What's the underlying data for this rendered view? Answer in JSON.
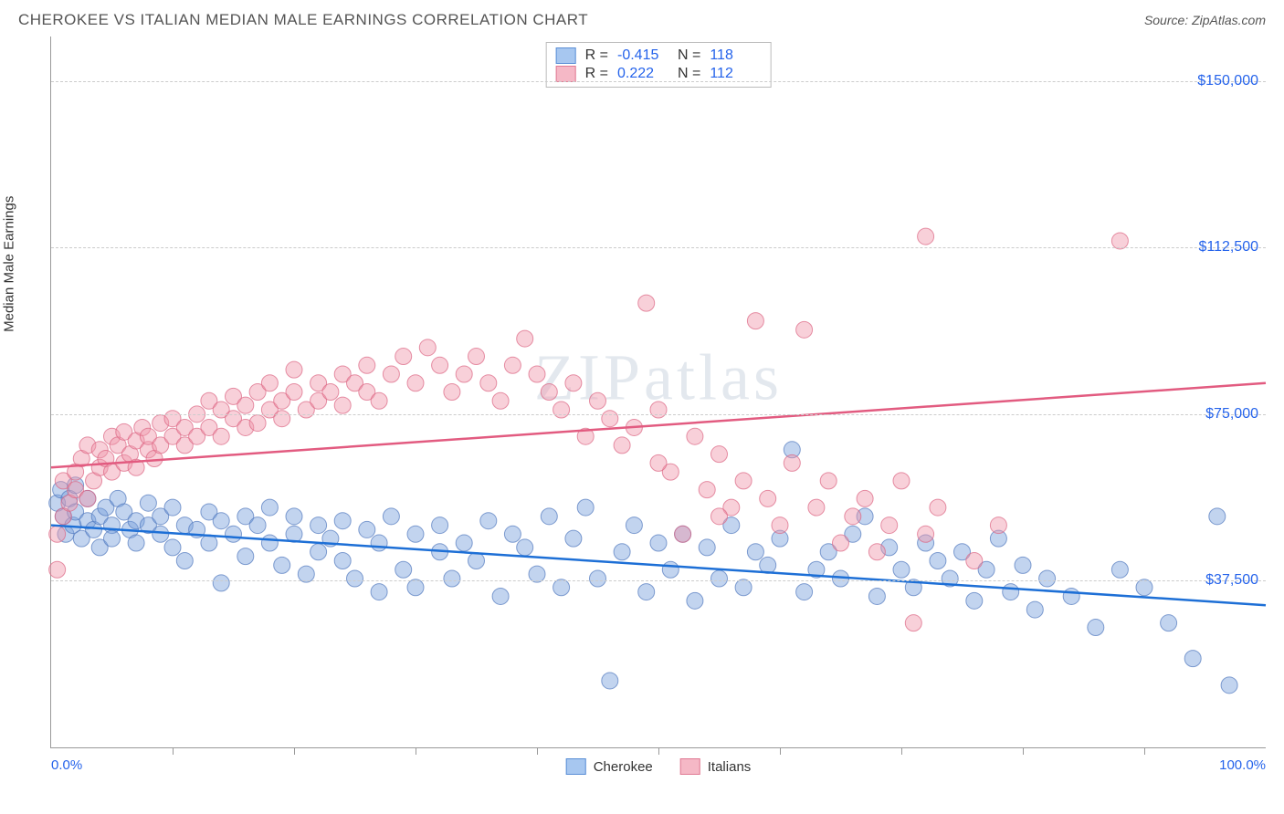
{
  "header": {
    "title": "CHEROKEE VS ITALIAN MEDIAN MALE EARNINGS CORRELATION CHART",
    "source_label": "Source:",
    "source_name": "ZipAtlas.com"
  },
  "chart": {
    "type": "scatter",
    "y_axis_label": "Median Male Earnings",
    "watermark": "ZIPatlas",
    "background_color": "#ffffff",
    "grid_color": "#cccccc",
    "axis_color": "#999999",
    "tick_label_color": "#2563eb",
    "xlim": [
      0,
      100
    ],
    "ylim": [
      0,
      160000
    ],
    "x_ticks_minor": [
      10,
      20,
      30,
      40,
      50,
      60,
      70,
      80,
      90
    ],
    "x_tick_labels": [
      {
        "pos": 0,
        "label": "0.0%",
        "align": "left"
      },
      {
        "pos": 100,
        "label": "100.0%",
        "align": "right"
      }
    ],
    "y_gridlines": [
      37500,
      75000,
      112500,
      150000
    ],
    "y_tick_labels": [
      {
        "pos": 37500,
        "label": "$37,500"
      },
      {
        "pos": 75000,
        "label": "$75,000"
      },
      {
        "pos": 112500,
        "label": "$112,500"
      },
      {
        "pos": 150000,
        "label": "$150,000"
      }
    ],
    "stats_legend": {
      "rows": [
        {
          "r_label": "R =",
          "r": "-0.415",
          "n_label": "N =",
          "n": "118",
          "swatch_fill": "#a7c7f0",
          "swatch_border": "#5b8fd6"
        },
        {
          "r_label": "R =",
          "r": "0.222",
          "n_label": "N =",
          "n": "112",
          "swatch_fill": "#f5b8c6",
          "swatch_border": "#e07a94"
        }
      ]
    },
    "bottom_legend": {
      "items": [
        {
          "label": "Cherokee",
          "swatch_fill": "#a7c7f0",
          "swatch_border": "#5b8fd6"
        },
        {
          "label": "Italians",
          "swatch_fill": "#f5b8c6",
          "swatch_border": "#e07a94"
        }
      ]
    },
    "series": [
      {
        "name": "Cherokee",
        "color_fill": "rgba(120,160,220,0.45)",
        "color_stroke": "rgba(80,120,190,0.7)",
        "trend_color": "#1d6fd6",
        "trend_width": 2.5,
        "trend": {
          "x1": 0,
          "y1": 50000,
          "x2": 100,
          "y2": 32000
        },
        "marker_r": 9,
        "points": [
          [
            0.5,
            55000
          ],
          [
            0.8,
            58000
          ],
          [
            1,
            52000
          ],
          [
            1.2,
            48000
          ],
          [
            1.5,
            56000
          ],
          [
            1.8,
            50000
          ],
          [
            2,
            53000
          ],
          [
            2,
            59000
          ],
          [
            2.5,
            47000
          ],
          [
            3,
            51000
          ],
          [
            3,
            56000
          ],
          [
            3.5,
            49000
          ],
          [
            4,
            52000
          ],
          [
            4,
            45000
          ],
          [
            4.5,
            54000
          ],
          [
            5,
            50000
          ],
          [
            5,
            47000
          ],
          [
            5.5,
            56000
          ],
          [
            6,
            53000
          ],
          [
            6.5,
            49000
          ],
          [
            7,
            51000
          ],
          [
            7,
            46000
          ],
          [
            8,
            55000
          ],
          [
            8,
            50000
          ],
          [
            9,
            48000
          ],
          [
            9,
            52000
          ],
          [
            10,
            54000
          ],
          [
            10,
            45000
          ],
          [
            11,
            50000
          ],
          [
            11,
            42000
          ],
          [
            12,
            49000
          ],
          [
            13,
            53000
          ],
          [
            13,
            46000
          ],
          [
            14,
            51000
          ],
          [
            14,
            37000
          ],
          [
            15,
            48000
          ],
          [
            16,
            52000
          ],
          [
            16,
            43000
          ],
          [
            17,
            50000
          ],
          [
            18,
            46000
          ],
          [
            18,
            54000
          ],
          [
            19,
            41000
          ],
          [
            20,
            48000
          ],
          [
            20,
            52000
          ],
          [
            21,
            39000
          ],
          [
            22,
            50000
          ],
          [
            22,
            44000
          ],
          [
            23,
            47000
          ],
          [
            24,
            42000
          ],
          [
            24,
            51000
          ],
          [
            25,
            38000
          ],
          [
            26,
            49000
          ],
          [
            27,
            35000
          ],
          [
            27,
            46000
          ],
          [
            28,
            52000
          ],
          [
            29,
            40000
          ],
          [
            30,
            48000
          ],
          [
            30,
            36000
          ],
          [
            32,
            44000
          ],
          [
            32,
            50000
          ],
          [
            33,
            38000
          ],
          [
            34,
            46000
          ],
          [
            35,
            42000
          ],
          [
            36,
            51000
          ],
          [
            37,
            34000
          ],
          [
            38,
            48000
          ],
          [
            39,
            45000
          ],
          [
            40,
            39000
          ],
          [
            41,
            52000
          ],
          [
            42,
            36000
          ],
          [
            43,
            47000
          ],
          [
            44,
            54000
          ],
          [
            45,
            38000
          ],
          [
            46,
            15000
          ],
          [
            47,
            44000
          ],
          [
            48,
            50000
          ],
          [
            49,
            35000
          ],
          [
            50,
            46000
          ],
          [
            51,
            40000
          ],
          [
            52,
            48000
          ],
          [
            53,
            33000
          ],
          [
            54,
            45000
          ],
          [
            55,
            38000
          ],
          [
            56,
            50000
          ],
          [
            57,
            36000
          ],
          [
            58,
            44000
          ],
          [
            59,
            41000
          ],
          [
            60,
            47000
          ],
          [
            61,
            67000
          ],
          [
            62,
            35000
          ],
          [
            63,
            40000
          ],
          [
            64,
            44000
          ],
          [
            65,
            38000
          ],
          [
            66,
            48000
          ],
          [
            67,
            52000
          ],
          [
            68,
            34000
          ],
          [
            69,
            45000
          ],
          [
            70,
            40000
          ],
          [
            71,
            36000
          ],
          [
            72,
            46000
          ],
          [
            73,
            42000
          ],
          [
            74,
            38000
          ],
          [
            75,
            44000
          ],
          [
            76,
            33000
          ],
          [
            77,
            40000
          ],
          [
            78,
            47000
          ],
          [
            79,
            35000
          ],
          [
            80,
            41000
          ],
          [
            81,
            31000
          ],
          [
            82,
            38000
          ],
          [
            84,
            34000
          ],
          [
            86,
            27000
          ],
          [
            88,
            40000
          ],
          [
            90,
            36000
          ],
          [
            92,
            28000
          ],
          [
            94,
            20000
          ],
          [
            96,
            52000
          ],
          [
            97,
            14000
          ]
        ]
      },
      {
        "name": "Italians",
        "color_fill": "rgba(240,150,170,0.45)",
        "color_stroke": "rgba(220,100,130,0.7)",
        "trend_color": "#e25b80",
        "trend_width": 2.5,
        "trend": {
          "x1": 0,
          "y1": 63000,
          "x2": 100,
          "y2": 82000
        },
        "marker_r": 9,
        "points": [
          [
            0.5,
            48000
          ],
          [
            0.5,
            40000
          ],
          [
            1,
            52000
          ],
          [
            1,
            60000
          ],
          [
            1.5,
            55000
          ],
          [
            2,
            62000
          ],
          [
            2,
            58000
          ],
          [
            2.5,
            65000
          ],
          [
            3,
            56000
          ],
          [
            3,
            68000
          ],
          [
            3.5,
            60000
          ],
          [
            4,
            63000
          ],
          [
            4,
            67000
          ],
          [
            4.5,
            65000
          ],
          [
            5,
            70000
          ],
          [
            5,
            62000
          ],
          [
            5.5,
            68000
          ],
          [
            6,
            64000
          ],
          [
            6,
            71000
          ],
          [
            6.5,
            66000
          ],
          [
            7,
            69000
          ],
          [
            7,
            63000
          ],
          [
            7.5,
            72000
          ],
          [
            8,
            67000
          ],
          [
            8,
            70000
          ],
          [
            8.5,
            65000
          ],
          [
            9,
            73000
          ],
          [
            9,
            68000
          ],
          [
            10,
            70000
          ],
          [
            10,
            74000
          ],
          [
            11,
            72000
          ],
          [
            11,
            68000
          ],
          [
            12,
            75000
          ],
          [
            12,
            70000
          ],
          [
            13,
            78000
          ],
          [
            13,
            72000
          ],
          [
            14,
            76000
          ],
          [
            14,
            70000
          ],
          [
            15,
            74000
          ],
          [
            15,
            79000
          ],
          [
            16,
            72000
          ],
          [
            16,
            77000
          ],
          [
            17,
            80000
          ],
          [
            17,
            73000
          ],
          [
            18,
            76000
          ],
          [
            18,
            82000
          ],
          [
            19,
            78000
          ],
          [
            19,
            74000
          ],
          [
            20,
            80000
          ],
          [
            20,
            85000
          ],
          [
            21,
            76000
          ],
          [
            22,
            82000
          ],
          [
            22,
            78000
          ],
          [
            23,
            80000
          ],
          [
            24,
            84000
          ],
          [
            24,
            77000
          ],
          [
            25,
            82000
          ],
          [
            26,
            86000
          ],
          [
            26,
            80000
          ],
          [
            27,
            78000
          ],
          [
            28,
            84000
          ],
          [
            29,
            88000
          ],
          [
            30,
            82000
          ],
          [
            31,
            90000
          ],
          [
            32,
            86000
          ],
          [
            33,
            80000
          ],
          [
            34,
            84000
          ],
          [
            35,
            88000
          ],
          [
            36,
            82000
          ],
          [
            37,
            78000
          ],
          [
            38,
            86000
          ],
          [
            39,
            92000
          ],
          [
            40,
            84000
          ],
          [
            41,
            80000
          ],
          [
            42,
            76000
          ],
          [
            43,
            82000
          ],
          [
            44,
            70000
          ],
          [
            45,
            78000
          ],
          [
            46,
            74000
          ],
          [
            47,
            68000
          ],
          [
            48,
            72000
          ],
          [
            49,
            100000
          ],
          [
            50,
            76000
          ],
          [
            51,
            62000
          ],
          [
            52,
            48000
          ],
          [
            53,
            70000
          ],
          [
            54,
            58000
          ],
          [
            55,
            66000
          ],
          [
            56,
            54000
          ],
          [
            57,
            60000
          ],
          [
            58,
            96000
          ],
          [
            59,
            56000
          ],
          [
            60,
            50000
          ],
          [
            61,
            64000
          ],
          [
            62,
            94000
          ],
          [
            63,
            54000
          ],
          [
            64,
            60000
          ],
          [
            65,
            46000
          ],
          [
            66,
            52000
          ],
          [
            67,
            56000
          ],
          [
            68,
            44000
          ],
          [
            69,
            50000
          ],
          [
            70,
            60000
          ],
          [
            71,
            28000
          ],
          [
            72,
            48000
          ],
          [
            73,
            54000
          ],
          [
            76,
            42000
          ],
          [
            78,
            50000
          ],
          [
            72,
            115000
          ],
          [
            88,
            114000
          ],
          [
            55,
            52000
          ],
          [
            50,
            64000
          ]
        ]
      }
    ]
  }
}
